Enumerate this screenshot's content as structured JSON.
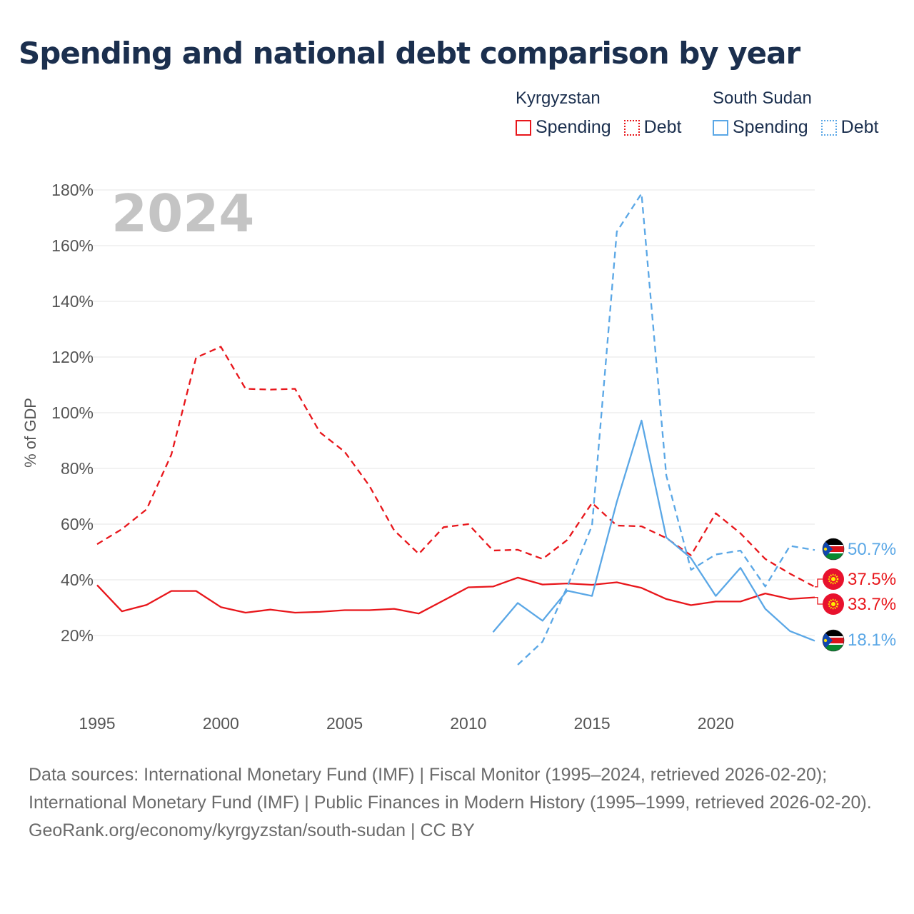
{
  "title": "Spending and national debt comparison by year",
  "legend": {
    "kyrgyzstan": {
      "country": "Kyrgyzstan",
      "spending": "Spending",
      "debt": "Debt"
    },
    "south_sudan": {
      "country": "South Sudan",
      "spending": "Spending",
      "debt": "Debt"
    }
  },
  "colors": {
    "kyrgyzstan": "#e8161b",
    "south_sudan": "#5aa7e6",
    "year_watermark": "#c4c4c4"
  },
  "footer": {
    "sources": "Data sources: International Monetary Fund (IMF) | Fiscal Monitor (1995–2024, retrieved 2026-02-20); International Monetary Fund (IMF) | Public Finances in Modern History (1995–1999, retrieved 2026-02-20).",
    "attribution": "GeoRank.org/economy/kyrgyzstan/south-sudan | CC BY"
  },
  "chart_data": {
    "type": "line",
    "title": "Spending and national debt comparison by year",
    "current_year": "2024",
    "xlabel": "",
    "ylabel": "% of GDP",
    "xlim": [
      1995,
      2024
    ],
    "ylim": [
      0,
      180
    ],
    "x_ticks": [
      "1995",
      "2000",
      "2005",
      "2010",
      "2015",
      "2020"
    ],
    "y_ticks": [
      "20%",
      "40%",
      "60%",
      "80%",
      "100%",
      "120%",
      "140%",
      "160%",
      "180%"
    ],
    "grid": true,
    "legend_position": "top-right",
    "series": [
      {
        "name": "Kyrgyzstan Debt",
        "country": "Kyrgyzstan",
        "style": "dashed",
        "color": "#e8161b",
        "end_label": "37.5%",
        "x": [
          1995,
          1996,
          1997,
          1998,
          1999,
          2000,
          2001,
          2002,
          2003,
          2004,
          2005,
          2006,
          2007,
          2008,
          2009,
          2010,
          2011,
          2012,
          2013,
          2014,
          2015,
          2016,
          2017,
          2018,
          2019,
          2020,
          2021,
          2022,
          2023,
          2024
        ],
        "y": [
          52.8,
          58.2,
          65.3,
          85,
          119.8,
          123.7,
          108.6,
          108.3,
          108.6,
          93,
          86,
          73.8,
          57.8,
          49.3,
          58.9,
          60,
          50.5,
          50.8,
          47.5,
          54.3,
          67.6,
          59.5,
          59.2,
          55,
          48.8,
          63.9,
          56.7,
          47.5,
          42.2,
          37.5
        ]
      },
      {
        "name": "Kyrgyzstan Spending",
        "country": "Kyrgyzstan",
        "style": "solid",
        "color": "#e8161b",
        "end_label": "33.7%",
        "x": [
          1995,
          1996,
          1997,
          1998,
          1999,
          2000,
          2001,
          2002,
          2003,
          2004,
          2005,
          2006,
          2007,
          2008,
          2009,
          2010,
          2011,
          2012,
          2013,
          2014,
          2015,
          2016,
          2017,
          2018,
          2019,
          2020,
          2021,
          2022,
          2023,
          2024
        ],
        "y": [
          38.1,
          28.7,
          31,
          36,
          36,
          30.2,
          28.2,
          29.3,
          28.2,
          28.5,
          29.1,
          29.1,
          29.6,
          27.9,
          32.6,
          37.3,
          37.6,
          40.8,
          38.3,
          38.7,
          38.2,
          39.1,
          37.1,
          33.1,
          30.9,
          32.2,
          32.2,
          35.1,
          33.1,
          33.7
        ]
      },
      {
        "name": "South Sudan Debt",
        "country": "South Sudan",
        "style": "dashed",
        "color": "#5aa7e6",
        "end_label": "50.7%",
        "x": [
          2012,
          2013,
          2014,
          2015,
          2016,
          2017,
          2018,
          2019,
          2020,
          2021,
          2022,
          2023,
          2024
        ],
        "y": [
          9.5,
          17.8,
          37.5,
          59.5,
          165,
          178.7,
          77.5,
          43.6,
          49.1,
          50.5,
          37.6,
          52.2,
          50.7
        ]
      },
      {
        "name": "South Sudan Spending",
        "country": "South Sudan",
        "style": "solid",
        "color": "#5aa7e6",
        "end_label": "18.1%",
        "x": [
          2011,
          2012,
          2013,
          2014,
          2015,
          2016,
          2017,
          2018,
          2019,
          2020,
          2021,
          2022,
          2023,
          2024
        ],
        "y": [
          21.2,
          31.7,
          25.3,
          36.1,
          34.2,
          68,
          97.2,
          55.2,
          47.8,
          34.2,
          44.3,
          29.6,
          21.6,
          18.1
        ]
      }
    ]
  }
}
